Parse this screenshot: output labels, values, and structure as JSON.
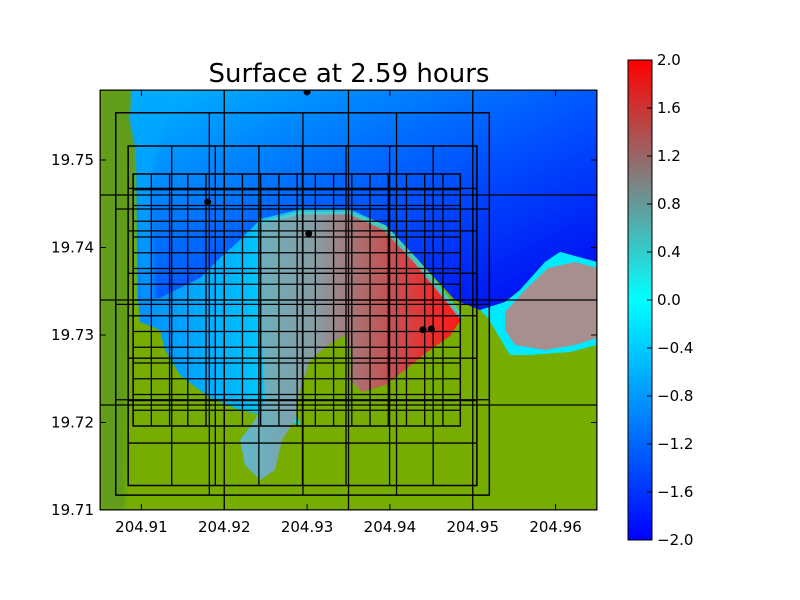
{
  "chart_data": {
    "type": "heatmap",
    "title": "Surface at 2.59 hours",
    "xlabel": "",
    "ylabel": "",
    "xlim": [
      204.905,
      204.965
    ],
    "ylim": [
      19.71,
      19.758
    ],
    "x_ticks": [
      204.91,
      204.92,
      204.93,
      204.94,
      204.95,
      204.96
    ],
    "x_tick_labels": [
      "204.91",
      "204.92",
      "204.93",
      "204.94",
      "204.95",
      "204.96"
    ],
    "y_ticks": [
      19.71,
      19.72,
      19.73,
      19.74,
      19.75
    ],
    "y_tick_labels": [
      "19.71",
      "19.72",
      "19.73",
      "19.74",
      "19.75"
    ],
    "colorbar": {
      "range": [
        -2.0,
        2.0
      ],
      "ticks": [
        2.0,
        1.6,
        1.2,
        0.8,
        0.4,
        0.0,
        -0.4,
        -0.8,
        -1.2,
        -1.6,
        -2.0
      ],
      "tick_labels": [
        "2.0",
        "1.6",
        "1.2",
        "0.8",
        "0.4",
        "0.0",
        "−0.4",
        "−0.8",
        "−1.2",
        "−1.6",
        "−2.0"
      ],
      "colors": [
        "#0000ff",
        "#00ffff",
        "#ff0000"
      ]
    },
    "colors": {
      "land": "#76ad00",
      "land_dark": "#5c9a22",
      "deep_water": "#0000ff",
      "shallow_water": "#00c8ff",
      "flooded_mid": "#808080",
      "flooded_high": "#ff1a1a"
    },
    "grid": false,
    "markers": [
      {
        "x": 204.93,
        "y": 19.7578
      },
      {
        "x": 204.918,
        "y": 19.7452
      },
      {
        "x": 204.9302,
        "y": 19.7416
      },
      {
        "x": 204.944,
        "y": 19.7306
      },
      {
        "x": 204.945,
        "y": 19.7307
      }
    ],
    "amr_patches": [
      {
        "level": 1,
        "x": [
          204.905,
          204.965
        ],
        "y": [
          19.71,
          19.758
        ],
        "dx": 0.015,
        "dy": 0.012
      },
      {
        "level": 2,
        "x": [
          204.9069,
          204.952
        ],
        "y": [
          19.7117,
          19.7554
        ],
        "dx": 0.0113,
        "dy": 0.0109
      },
      {
        "level": 3,
        "x": [
          204.9084,
          204.9505
        ],
        "y": [
          19.7128,
          19.7516
        ],
        "dx": 0.00526,
        "dy": 0.00485
      },
      {
        "level": 4,
        "x": [
          204.909,
          204.9485
        ],
        "y": [
          19.7196,
          19.7484
        ],
        "dx": 0.0022,
        "dy": 0.0018
      }
    ]
  }
}
